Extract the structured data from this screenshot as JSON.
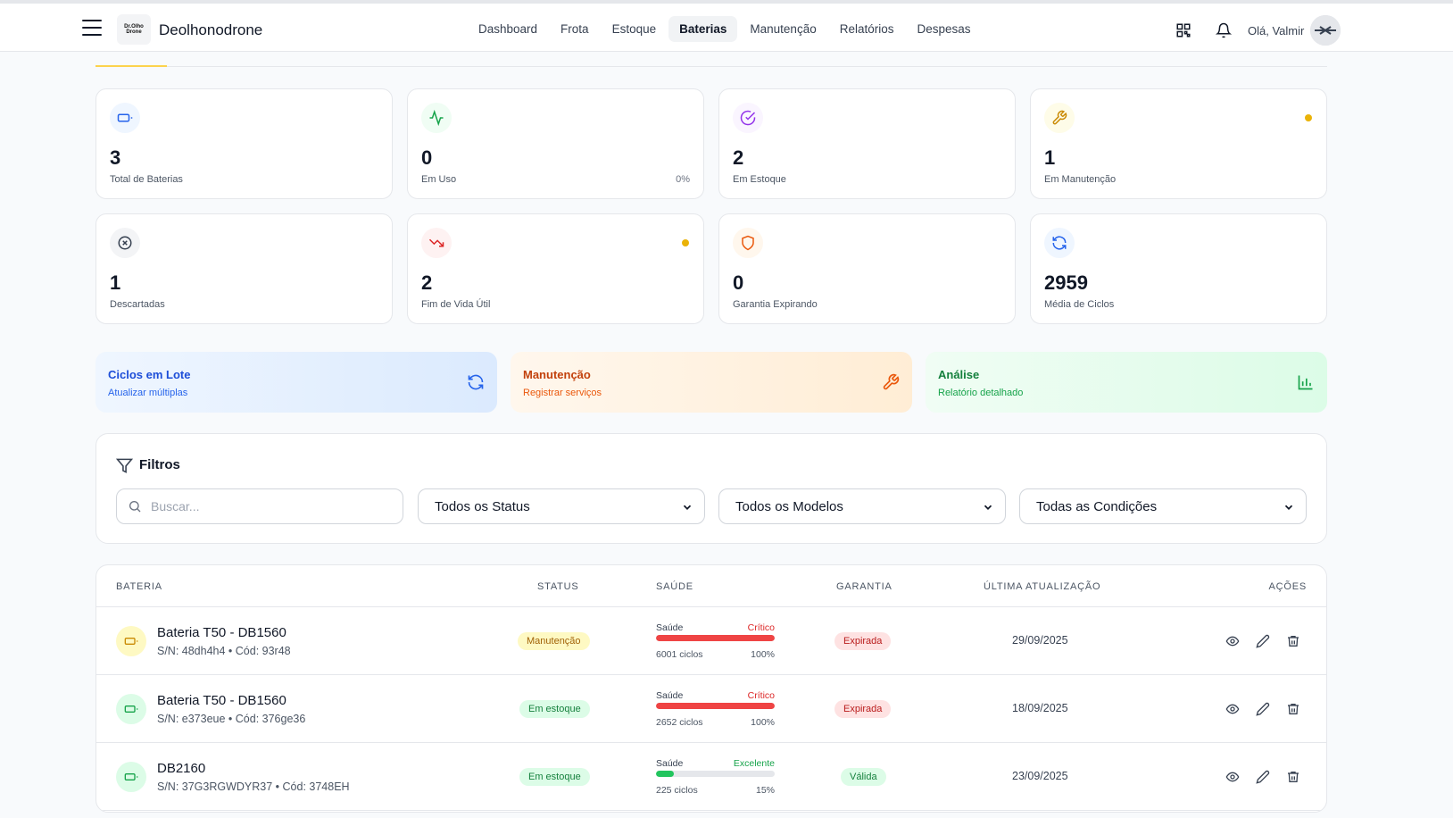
{
  "header": {
    "logo_text": "Dr.Olho Drone",
    "brand": "Deolhonodrone",
    "nav": [
      "Dashboard",
      "Frota",
      "Estoque",
      "Baterias",
      "Manutenção",
      "Relatórios",
      "Despesas"
    ],
    "active_nav": "Baterias",
    "greeting": "Olá, Valmir"
  },
  "stats": [
    {
      "value": "3",
      "label": "Total de Baterias",
      "icon": "battery-icon",
      "color": "#2563eb"
    },
    {
      "value": "0",
      "label": "Em Uso",
      "pct": "0%",
      "icon": "activity-icon",
      "color": "#16a34a"
    },
    {
      "value": "2",
      "label": "Em Estoque",
      "icon": "check-circle-icon",
      "color": "#9333ea"
    },
    {
      "value": "1",
      "label": "Em Manutenção",
      "icon": "wrench-icon",
      "color": "#ca8a04"
    },
    {
      "value": "1",
      "label": "Descartadas",
      "icon": "x-circle-icon",
      "color": "#4b5563"
    },
    {
      "value": "2",
      "label": "Fim de Vida Útil",
      "icon": "trending-down-icon",
      "color": "#dc2626"
    },
    {
      "value": "0",
      "label": "Garantia Expirando",
      "icon": "shield-icon",
      "color": "#ea580c"
    },
    {
      "value": "2959",
      "label": "Média de Ciclos",
      "icon": "refresh-icon",
      "color": "#2563eb"
    }
  ],
  "actions": [
    {
      "title": "Ciclos em Lote",
      "sub": "Atualizar múltiplas",
      "icon": "refresh-icon"
    },
    {
      "title": "Manutenção",
      "sub": "Registrar serviços",
      "icon": "wrench-icon"
    },
    {
      "title": "Análise",
      "sub": "Relatório detalhado",
      "icon": "bar-chart-icon"
    }
  ],
  "filters": {
    "title": "Filtros",
    "search_placeholder": "Buscar...",
    "status": "Todos os Status",
    "model": "Todos os Modelos",
    "condition": "Todas as Condições"
  },
  "table": {
    "headers": {
      "battery": "BATERIA",
      "status": "STATUS",
      "health": "SAÚDE",
      "warranty": "GARANTIA",
      "updated": "ÚLTIMA ATUALIZAÇÃO",
      "actions": "AÇÕES"
    },
    "health_label": "Saúde",
    "rows": [
      {
        "name": "Bateria T50 - DB1560",
        "sub": "S/N: 48dh4h4 • Cód: 93r48",
        "status": "Manutenção",
        "health_status": "Crítico",
        "cycles": "6001 ciclos",
        "pct": "100%",
        "fill": 1.0,
        "warranty": "Expirada",
        "date": "29/09/2025"
      },
      {
        "name": "Bateria T50 - DB1560",
        "sub": "S/N: e373eue • Cód: 376ge36",
        "status": "Em estoque",
        "health_status": "Crítico",
        "cycles": "2652 ciclos",
        "pct": "100%",
        "fill": 1.0,
        "warranty": "Expirada",
        "date": "18/09/2025"
      },
      {
        "name": "DB2160",
        "sub": "S/N: 37G3RGWDYR37 • Cód: 3748EH",
        "status": "Em estoque",
        "health_status": "Excelente",
        "cycles": "225 ciclos",
        "pct": "15%",
        "fill": 0.15,
        "warranty": "Válida",
        "date": "23/09/2025"
      }
    ]
  }
}
